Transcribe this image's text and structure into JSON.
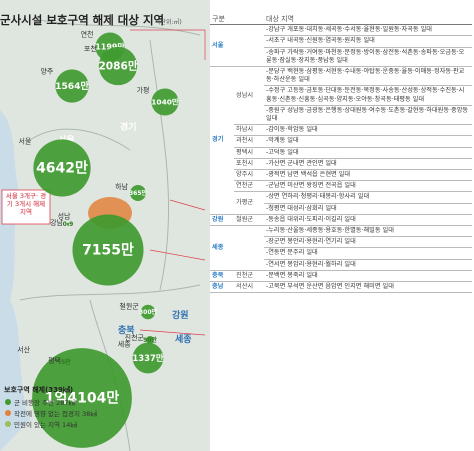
{
  "header": {
    "title": "군사시설 보호구역 해제 대상 지역",
    "unit": "(단위:㎡)"
  },
  "map": {
    "regions": [
      "경기",
      "서울",
      "강원",
      "충북",
      "세종"
    ],
    "callout": "서울 3개구· 경기 3개시 해제 지역",
    "bubbles": [
      {
        "name": "연천",
        "value": 1199,
        "label": "1199만"
      },
      {
        "name": "포천",
        "value": 2086,
        "label": "2086만"
      },
      {
        "name": "양주",
        "value": 1564,
        "label": "1564만"
      },
      {
        "name": "가평",
        "value": 1040,
        "label": "1040만"
      },
      {
        "name": "서울",
        "value": 4642,
        "label": "4642만"
      },
      {
        "name": "하남",
        "value": 365,
        "label": "365만"
      },
      {
        "name": "강남",
        "value": 0.9,
        "label": "0.9"
      },
      {
        "name": "성남",
        "value": 7155,
        "label": "7155만"
      },
      {
        "name": "철원군",
        "value": 300,
        "label": "300만"
      },
      {
        "name": "진천군",
        "value": 90,
        "label": "90만"
      },
      {
        "name": "세종",
        "value": 1337,
        "label": "1337만"
      },
      {
        "name": "서산",
        "value": 14104,
        "label": "1억4104만"
      },
      {
        "name": "평택",
        "value": 5,
        "label": "5만"
      }
    ]
  },
  "legend": {
    "title": "보호구역 해제(339㎢)",
    "items": [
      "군 비행장 주변 287㎢",
      "작전에 영향 없는 접경지 38㎢",
      "민원이 있는 지역 14㎢"
    ]
  },
  "table": {
    "headers": [
      "구분",
      "대상 지역"
    ],
    "groups": [
      {
        "region": "서울",
        "rows": [
          {
            "district": "",
            "items": [
              "-강남구 개포동·대치동·세곡동·수서동·율현동·일원동·자곡동 일대",
              "-서초구 내곡동·신원동·염곡동·원지동 일대",
              "-송파구 가락동·거여동·마천동·문정동·방이동·삼전동·석촌동·송파동·오금동·오륜동·잠실동·장지동·풍납동 일대"
            ]
          }
        ]
      },
      {
        "region": "경기",
        "rows": [
          {
            "district": "성남시",
            "items": [
              "-분당구 백현동·삼평동·서현동·수내동·야탑동·운중동·율동·이매동·정자동·판교동·하산운동 일대",
              "-수정구 고등동·금토동·단대동·둔전동·복정동·사송동·산성동·상적동·수진동·시흥동·신촌동·신흥동·심곡동·양지동·오야동·창곡동·태평동 일대",
              "-중원구 성남동·금광동·은행동·상대원동·여수동·도촌동·갈현동·하대원동·중앙동 일대"
            ]
          },
          {
            "district": "하남시",
            "items": [
              "-감이동·학암동 일대"
            ]
          },
          {
            "district": "과천시",
            "items": [
              "-막계동 일대"
            ]
          },
          {
            "district": "평택시",
            "items": [
              "-고덕동 일대"
            ]
          },
          {
            "district": "포천시",
            "items": [
              "-가산면 군내면 관인면 일대"
            ]
          },
          {
            "district": "양주시",
            "items": [
              "-광적면 남면 백석읍 은현면 일대"
            ]
          },
          {
            "district": "연천군",
            "items": [
              "-군남면 미산면 왕징면 전곡읍 일대"
            ]
          },
          {
            "district": "가평군",
            "items": [
              "-상면 연하리·청평리·태봉리·항사리 일대",
              "-청평면 대성리·삼회리 일대"
            ]
          }
        ]
      },
      {
        "region": "강원",
        "rows": [
          {
            "district": "철원군",
            "items": [
              "-동송읍 대위리·도피리·이길리 일대"
            ]
          }
        ]
      },
      {
        "region": "세종",
        "rows": [
          {
            "district": "",
            "items": [
              "-누리동·산울동·세종동·용호동·한별동·해밀동 일대",
              "-장군면 봉안리·용현리·연기리 일대",
              "-연동면 문주리 일대",
              "-연서면 봉암리·용현리·월하리 일대"
            ]
          }
        ]
      },
      {
        "region": "충북",
        "rows": [
          {
            "district": "진천군",
            "items": [
              "-문백면 봉죽리 일대"
            ]
          }
        ]
      },
      {
        "region": "충남",
        "rows": [
          {
            "district": "서산시",
            "items": [
              "-고북면 부석면 운산면 음암면 인지면 해미면 일대"
            ]
          }
        ]
      }
    ]
  }
}
